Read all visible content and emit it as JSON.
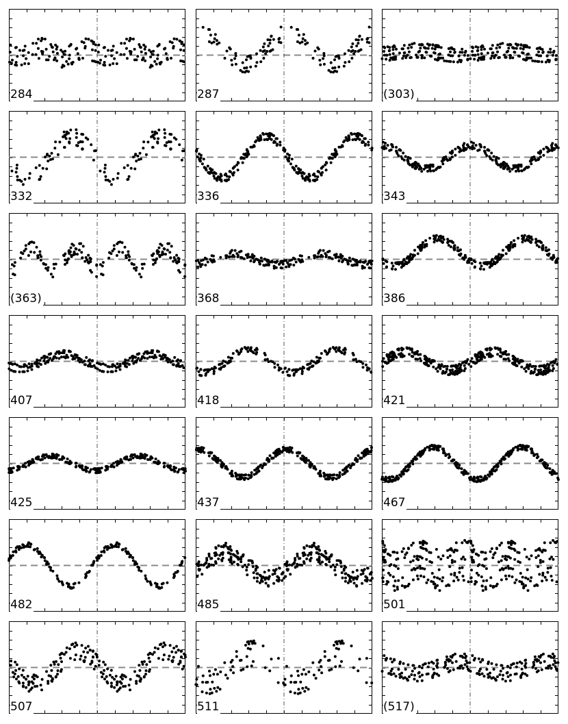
{
  "figure_type": "phase-folded light curve grid",
  "chart_data": {
    "type": "scatter",
    "layout": {
      "rows": 7,
      "cols": 3
    },
    "x_range": [
      0,
      2
    ],
    "y_range": [
      -1,
      1
    ],
    "reference_line": {
      "y": 0,
      "style": "dashed",
      "color": "#888888"
    },
    "phase_marker": {
      "x": 1,
      "style": "dash-dot",
      "color": "#555555"
    },
    "marker_color": "#000000",
    "panels": [
      {
        "label": "284",
        "amplitude": 0.1,
        "harmonics": 2,
        "scatter": 0.12,
        "points": 190,
        "offset": 0.05
      },
      {
        "label": "287",
        "amplitude": 0.35,
        "harmonics": 1,
        "scatter": 0.1,
        "points": 130,
        "offset": 0.15
      },
      {
        "label": "(303)",
        "amplitude": 0.05,
        "harmonics": 1,
        "scatter": 0.1,
        "points": 260,
        "offset": 0.05
      },
      {
        "label": "332",
        "amplitude": 0.45,
        "harmonics": 1,
        "scatter": 0.12,
        "points": 130,
        "offset": 0.0
      },
      {
        "label": "336",
        "amplitude": 0.45,
        "harmonics": 1,
        "scatter": 0.06,
        "points": 260,
        "offset": 0.0
      },
      {
        "label": "343",
        "amplitude": 0.25,
        "harmonics": 1,
        "scatter": 0.06,
        "points": 260,
        "offset": 0.0
      },
      {
        "label": "(363)",
        "amplitude": 0.25,
        "harmonics": 2,
        "scatter": 0.12,
        "points": 170,
        "offset": 0.0
      },
      {
        "label": "368",
        "amplitude": 0.12,
        "harmonics": 1,
        "scatter": 0.07,
        "points": 200,
        "offset": 0.0
      },
      {
        "label": "386",
        "amplitude": 0.3,
        "harmonics": 1,
        "scatter": 0.07,
        "points": 260,
        "offset": 0.15
      },
      {
        "label": "407",
        "amplitude": 0.15,
        "harmonics": 1,
        "scatter": 0.09,
        "points": 240,
        "offset": 0.0
      },
      {
        "label": "418",
        "amplitude": 0.25,
        "harmonics": 1,
        "scatter": 0.08,
        "points": 170,
        "offset": 0.0
      },
      {
        "label": "421",
        "amplitude": 0.2,
        "harmonics": 1,
        "scatter": 0.13,
        "points": 330,
        "offset": 0.0
      },
      {
        "label": "425",
        "amplitude": 0.16,
        "harmonics": 1,
        "scatter": 0.07,
        "points": 260,
        "offset": 0.0
      },
      {
        "label": "437",
        "amplitude": 0.3,
        "harmonics": 1,
        "scatter": 0.1,
        "points": 280,
        "offset": 0.0
      },
      {
        "label": "467",
        "amplitude": 0.35,
        "harmonics": 1,
        "scatter": 0.12,
        "points": 320,
        "offset": 0.0
      },
      {
        "label": "482",
        "amplitude": 0.45,
        "harmonics": 1,
        "scatter": 0.14,
        "points": 170,
        "offset": 0.0
      },
      {
        "label": "485",
        "amplitude": 0.28,
        "harmonics": 1,
        "scatter": 0.06,
        "points": 300,
        "offset": 0.0
      },
      {
        "label": "501",
        "amplitude": 0.12,
        "harmonics": 2,
        "scatter": 0.18,
        "points": 320,
        "offset": 0.0
      },
      {
        "label": "507",
        "amplitude": 0.35,
        "harmonics": 1,
        "scatter": 0.09,
        "points": 210,
        "offset": 0.0
      },
      {
        "label": "511",
        "amplitude": 0.3,
        "harmonics": 1,
        "scatter": 0.14,
        "points": 120,
        "offset": 0.0
      },
      {
        "label": "(517)",
        "amplitude": 0.12,
        "harmonics": 1,
        "scatter": 0.1,
        "points": 220,
        "offset": 0.0
      }
    ]
  }
}
